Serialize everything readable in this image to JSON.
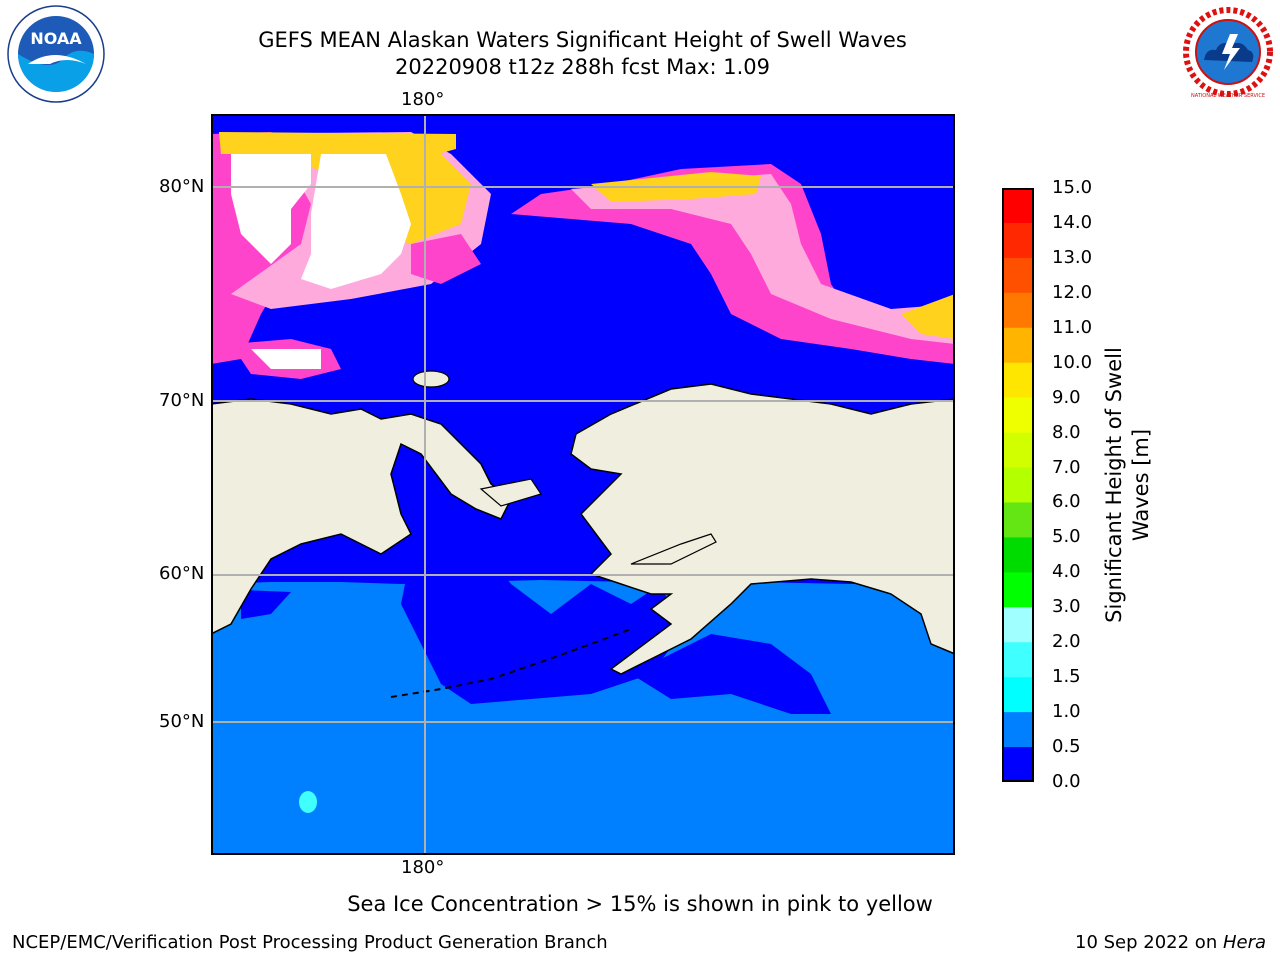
{
  "title": {
    "line1": "GEFS MEAN Alaskan Waters Significant Height of Swell Waves",
    "line2": "20220908 t12z 288h fcst   Max: 1.09"
  },
  "map": {
    "lon_top": "180°",
    "lon_bottom": "180°",
    "lat_labels": [
      "80°N",
      "70°N",
      "60°N",
      "50°N"
    ],
    "colors": {
      "land": "#efeedf",
      "swell_0_05": "#0000ff",
      "swell_05_10": "#0080ff",
      "swell_15_20": "#40ffff",
      "ice_low": "#ff44cc",
      "ice_mid": "#ffaadd",
      "ice_high": "#ffd21e",
      "grid": "#b0b0b0"
    }
  },
  "colorbar": {
    "title_line1": "Significant Height of Swell",
    "title_line2": "Waves [m]",
    "labels": [
      "15.0",
      "14.0",
      "13.0",
      "12.0",
      "11.0",
      "10.0",
      "9.0",
      "8.0",
      "7.0",
      "6.0",
      "5.0",
      "4.0",
      "3.0",
      "2.0",
      "1.5",
      "1.0",
      "0.5",
      "0.0"
    ],
    "colors": [
      "#ff0000",
      "#ff2800",
      "#ff5000",
      "#ff7800",
      "#ff9600",
      "#ffb400",
      "#ffe600",
      "#f0ff00",
      "#d2ff00",
      "#b4ff00",
      "#64e614",
      "#00dc00",
      "#00ff00",
      "#50ff80",
      "#a0ffff",
      "#40ffff",
      "#00ffff",
      "#0080ff",
      "#0000ff"
    ]
  },
  "footnote": "Sea Ice Concentration > 15% is shown in pink to yellow",
  "credit": "NCEP/EMC/Verification Post Processing Product Generation Branch",
  "date": {
    "text": "10 Sep 2022 on ",
    "host": "Hera"
  },
  "logos": {
    "left": "NOAA",
    "right": "NATIONAL WEATHER SERVICE"
  }
}
